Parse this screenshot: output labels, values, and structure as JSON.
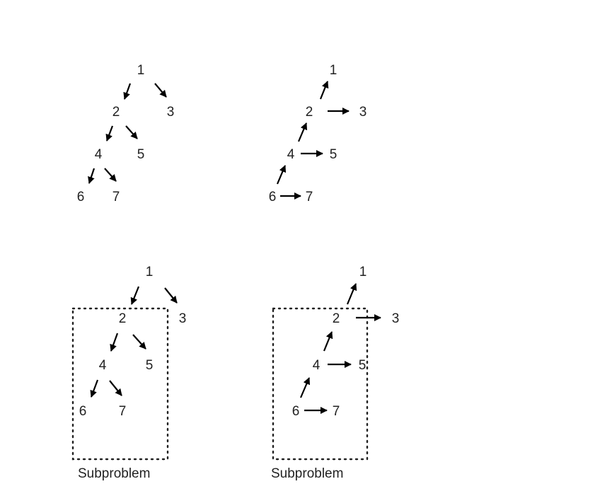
{
  "colors": {
    "ink": "#222222",
    "arrow": "#000000",
    "background": "#ffffff"
  },
  "panels": [
    {
      "id": "top-left",
      "nodes": [
        {
          "id": "n1",
          "label": "1"
        },
        {
          "id": "n2",
          "label": "2"
        },
        {
          "id": "n3",
          "label": "3"
        },
        {
          "id": "n4",
          "label": "4"
        },
        {
          "id": "n5",
          "label": "5"
        },
        {
          "id": "n6",
          "label": "6"
        },
        {
          "id": "n7",
          "label": "7"
        }
      ],
      "arrows": [
        {
          "from": "1",
          "to": "2"
        },
        {
          "from": "1",
          "to": "3"
        },
        {
          "from": "2",
          "to": "4"
        },
        {
          "from": "2",
          "to": "5"
        },
        {
          "from": "4",
          "to": "6"
        },
        {
          "from": "4",
          "to": "7"
        }
      ]
    },
    {
      "id": "top-right",
      "nodes": [
        {
          "id": "n1",
          "label": "1"
        },
        {
          "id": "n2",
          "label": "2"
        },
        {
          "id": "n3",
          "label": "3"
        },
        {
          "id": "n4",
          "label": "4"
        },
        {
          "id": "n5",
          "label": "5"
        },
        {
          "id": "n6",
          "label": "6"
        },
        {
          "id": "n7",
          "label": "7"
        }
      ],
      "arrows": [
        {
          "from": "2",
          "to": "1"
        },
        {
          "from": "2",
          "to": "3"
        },
        {
          "from": "4",
          "to": "2"
        },
        {
          "from": "4",
          "to": "5"
        },
        {
          "from": "6",
          "to": "4"
        },
        {
          "from": "6",
          "to": "7"
        }
      ]
    },
    {
      "id": "bottom-left",
      "caption": "Subproblem",
      "nodes": [
        {
          "id": "n1",
          "label": "1"
        },
        {
          "id": "n2",
          "label": "2"
        },
        {
          "id": "n3",
          "label": "3"
        },
        {
          "id": "n4",
          "label": "4"
        },
        {
          "id": "n5",
          "label": "5"
        },
        {
          "id": "n6",
          "label": "6"
        },
        {
          "id": "n7",
          "label": "7"
        }
      ],
      "arrows": [
        {
          "from": "1",
          "to": "2"
        },
        {
          "from": "1",
          "to": "3"
        },
        {
          "from": "2",
          "to": "4"
        },
        {
          "from": "2",
          "to": "5"
        },
        {
          "from": "4",
          "to": "6"
        },
        {
          "from": "4",
          "to": "7"
        }
      ]
    },
    {
      "id": "bottom-right",
      "caption": "Subproblem",
      "nodes": [
        {
          "id": "n1",
          "label": "1"
        },
        {
          "id": "n2",
          "label": "2"
        },
        {
          "id": "n3",
          "label": "3"
        },
        {
          "id": "n4",
          "label": "4"
        },
        {
          "id": "n5",
          "label": "5"
        },
        {
          "id": "n6",
          "label": "6"
        },
        {
          "id": "n7",
          "label": "7"
        }
      ],
      "arrows": [
        {
          "from": "2",
          "to": "1"
        },
        {
          "from": "2",
          "to": "3"
        },
        {
          "from": "4",
          "to": "2"
        },
        {
          "from": "4",
          "to": "5"
        },
        {
          "from": "6",
          "to": "4"
        },
        {
          "from": "6",
          "to": "7"
        }
      ]
    }
  ]
}
